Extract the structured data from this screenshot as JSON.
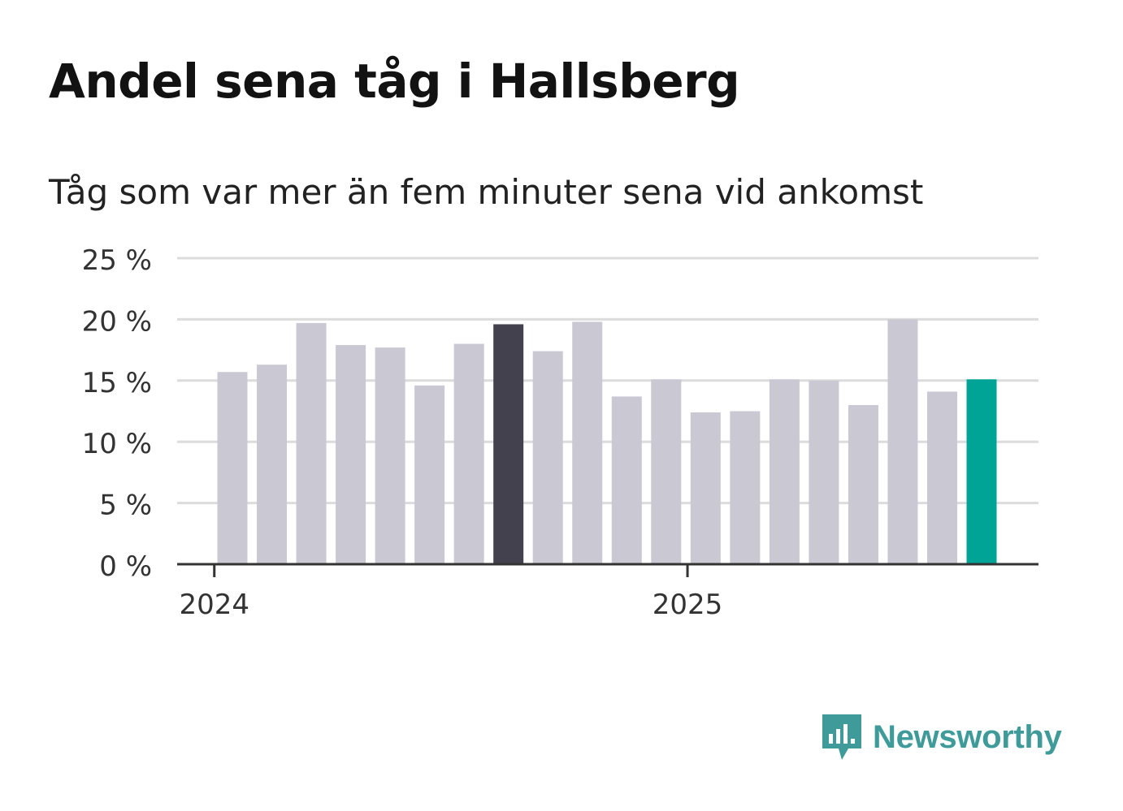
{
  "title": "Andel sena tåg i Hallsberg",
  "subtitle": "Tåg som var mer än fem minuter sena vid ankomst",
  "brand": {
    "name": "Newsworthy",
    "color": "#3f9a9a",
    "icon": "bar-chart-speech-bubble-icon"
  },
  "colors": {
    "bar_default": "#c9c8d3",
    "bar_highlight_dark": "#42414d",
    "bar_highlight_teal": "#00a497",
    "gridline": "#dcdcdc",
    "axis": "#333333"
  },
  "chart_data": {
    "type": "bar",
    "title": "Andel sena tåg i Hallsberg",
    "subtitle": "Tåg som var mer än fem minuter sena vid ankomst",
    "xlabel": "",
    "ylabel": "",
    "ylim": [
      0,
      25
    ],
    "y_ticks": [
      0,
      5,
      10,
      15,
      20,
      25
    ],
    "y_tick_labels": [
      "0 %",
      "5 %",
      "10 %",
      "15 %",
      "20 %",
      "25 %"
    ],
    "x_tick_labels": [
      "2024",
      "2025"
    ],
    "categories": [
      "2024-01",
      "2024-02",
      "2024-03",
      "2024-04",
      "2024-05",
      "2024-06",
      "2024-07",
      "2024-08",
      "2024-09",
      "2024-10",
      "2024-11",
      "2024-12",
      "2025-01",
      "2025-02",
      "2025-03",
      "2025-04",
      "2025-05",
      "2025-06",
      "2025-07",
      "2025-08"
    ],
    "values": [
      15.7,
      16.3,
      19.7,
      17.9,
      17.7,
      14.6,
      18.0,
      19.6,
      17.4,
      19.8,
      13.7,
      15.1,
      12.4,
      12.5,
      15.1,
      15.0,
      13.0,
      20.0,
      14.1,
      15.1
    ],
    "highlights": {
      "7": "dark",
      "19": "teal"
    },
    "grid": true,
    "legend": "none"
  }
}
